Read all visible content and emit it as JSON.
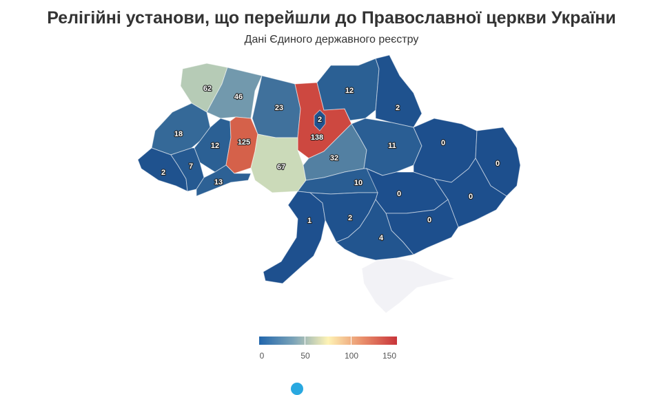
{
  "title": "Релігійні установи, що перейшли до Православної церкви України",
  "subtitle": "Дані Єдиного державного реєстру",
  "colors": {
    "low": "#1d4f8d",
    "mid_low": "#7ba3b8",
    "mid": "#fef3b5",
    "mid_high": "#e98f6b",
    "high": "#c8343a",
    "no_data": "#f2f2f6"
  },
  "chart_data": {
    "type": "choropleth",
    "title": "Релігійні установи, що перейшли до Православної церкви України",
    "subtitle": "Дані Єдиного державного реєстру",
    "color_range": [
      0,
      150
    ],
    "legend": {
      "position": "bottom-center",
      "ticks": [
        "0",
        "50",
        "100",
        "150"
      ]
    },
    "regions": [
      {
        "id": "volyn",
        "value": 62
      },
      {
        "id": "rivne",
        "value": 46
      },
      {
        "id": "zhytomyr",
        "value": 23
      },
      {
        "id": "kyiv-oblast",
        "value": 138
      },
      {
        "id": "kyiv-city",
        "value": 2
      },
      {
        "id": "chernihiv",
        "value": 12
      },
      {
        "id": "sumy",
        "value": 2
      },
      {
        "id": "lviv",
        "value": 18
      },
      {
        "id": "ternopil",
        "value": 12
      },
      {
        "id": "khmelnytskyi",
        "value": 125
      },
      {
        "id": "vinnytsia",
        "value": 67
      },
      {
        "id": "cherkasy",
        "value": 32
      },
      {
        "id": "poltava",
        "value": 11
      },
      {
        "id": "kharkiv",
        "value": 0
      },
      {
        "id": "luhansk",
        "value": 0
      },
      {
        "id": "zakarpattia",
        "value": 2
      },
      {
        "id": "ivano-frankivsk",
        "value": 7
      },
      {
        "id": "chernivtsi",
        "value": 13
      },
      {
        "id": "kirovohrad",
        "value": 10
      },
      {
        "id": "dnipropetrovsk",
        "value": 0
      },
      {
        "id": "donetsk",
        "value": 0
      },
      {
        "id": "odesa",
        "value": 1
      },
      {
        "id": "mykolaiv",
        "value": 2
      },
      {
        "id": "zaporizhzhia",
        "value": 0
      },
      {
        "id": "kherson",
        "value": 4
      },
      {
        "id": "crimea",
        "value": null
      }
    ]
  }
}
